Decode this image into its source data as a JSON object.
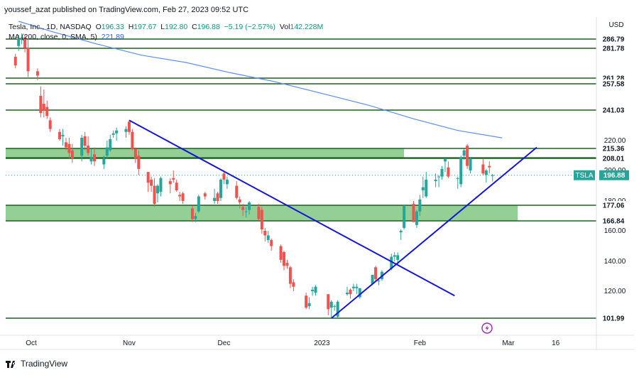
{
  "header": {
    "author": "youssef_azat",
    "published_text": "published on TradingView.com, Feb 27, 2023 09:52 UTC"
  },
  "legend": {
    "symbol": "Tesla, Inc., 1D, NASDAQ",
    "open_label": "O",
    "open": "196.33",
    "high_label": "H",
    "high": "197.67",
    "low_label": "L",
    "low": "192.80",
    "close_label": "C",
    "close": "196.88",
    "change": "−5.19 (−2.57%)",
    "vol_label": "Vol",
    "vol": "142.228M",
    "ma_label": "MA (200, close, 0, SMA, 5)",
    "ma_value": "221.89"
  },
  "brand": {
    "name": "TradingView"
  },
  "colors": {
    "up": "#26a69a",
    "down": "#ef5350",
    "ma": "#5b8ff0",
    "hline": "#1b5e20",
    "zone": "#81c784",
    "trend": "#1616d8",
    "tag": "#26a69a",
    "axis_text": "#131722"
  },
  "chart_data": {
    "type": "candlestick",
    "currency": "USD",
    "ticker_tag": "TSLA",
    "last_price": "196.88",
    "y_ticks": [
      "220.00",
      "200.00",
      "180.00",
      "160.00",
      "140.00",
      "120.00"
    ],
    "x_ticks": [
      {
        "label": "Oct",
        "x": "2022-10-01"
      },
      {
        "label": "Nov",
        "x": "2022-11-01"
      },
      {
        "label": "Dec",
        "x": "2022-12-01"
      },
      {
        "label": "2023",
        "x": "2023-01-01"
      },
      {
        "label": "Feb",
        "x": "2023-02-01"
      },
      {
        "label": "Mar",
        "x": "2023-03-01"
      },
      {
        "label": "16",
        "x": "2023-03-16"
      }
    ],
    "horizontal_levels": [
      "286.79",
      "281.78",
      "261.28",
      "257.58",
      "241.03",
      "208.01",
      "101.99"
    ],
    "zones": [
      {
        "top": "215.36",
        "bottom": 208.5,
        "x_end": "2023-01-27"
      },
      {
        "top": "177.06",
        "bottom": "166.84",
        "x_end": "2023-03-04"
      }
    ],
    "trendlines": [
      {
        "from": [
          "2022-11-01",
          234
        ],
        "to": [
          "2023-02-12",
          117
        ]
      },
      {
        "from": [
          "2023-01-04",
          101.99
        ],
        "to": [
          "2023-03-10",
          216
        ]
      }
    ],
    "ma_series": [
      [
        "2022-09-27",
        300
      ],
      [
        "2022-10-08",
        292
      ],
      [
        "2022-10-22",
        284
      ],
      [
        "2022-11-05",
        277
      ],
      [
        "2022-11-19",
        272
      ],
      [
        "2022-12-03",
        265
      ],
      [
        "2022-12-17",
        259
      ],
      [
        "2023-01-02",
        251
      ],
      [
        "2023-01-16",
        244
      ],
      [
        "2023-01-30",
        235
      ],
      [
        "2023-02-13",
        227
      ],
      [
        "2023-02-27",
        221.89
      ]
    ],
    "candles": [
      [
        "2022-09-26",
        276,
        278,
        268,
        270
      ],
      [
        "2022-09-27",
        283,
        290,
        280,
        287
      ],
      [
        "2022-09-28",
        287,
        291,
        284,
        288
      ],
      [
        "2022-09-29",
        288,
        290,
        279,
        282
      ],
      [
        "2022-09-30",
        282,
        287,
        262,
        266
      ],
      [
        "2022-10-03",
        266,
        268,
        260,
        263
      ],
      [
        "2022-10-04",
        250,
        256,
        236,
        239
      ],
      [
        "2022-10-05",
        245,
        254,
        236,
        241
      ],
      [
        "2022-10-06",
        243,
        247,
        235,
        237
      ],
      [
        "2022-10-07",
        234,
        236,
        226,
        228
      ],
      [
        "2022-10-10",
        226,
        228,
        220,
        221
      ],
      [
        "2022-10-11",
        223,
        228,
        217,
        224
      ],
      [
        "2022-10-12",
        219,
        222,
        214,
        216
      ],
      [
        "2022-10-13",
        218,
        222,
        208,
        212
      ],
      [
        "2022-10-14",
        214,
        218,
        205,
        208
      ],
      [
        "2022-10-17",
        210,
        224,
        206,
        222
      ],
      [
        "2022-10-18",
        223,
        226,
        214,
        217
      ],
      [
        "2022-10-19",
        217,
        223,
        210,
        212
      ],
      [
        "2022-10-20",
        206,
        215,
        204,
        209
      ],
      [
        "2022-10-21",
        211,
        216,
        203,
        206
      ],
      [
        "2022-10-24",
        204,
        210,
        201,
        208
      ],
      [
        "2022-10-25",
        210,
        220,
        208,
        216
      ],
      [
        "2022-10-26",
        214,
        224,
        213,
        221
      ],
      [
        "2022-10-27",
        224,
        227,
        222,
        225
      ],
      [
        "2022-10-28",
        225,
        229,
        220,
        227
      ],
      [
        "2022-10-31",
        226,
        230,
        222,
        228
      ],
      [
        "2022-11-01",
        233,
        234,
        224,
        226
      ],
      [
        "2022-11-02",
        226,
        228,
        214,
        215
      ],
      [
        "2022-11-03",
        215,
        216,
        205,
        208
      ],
      [
        "2022-11-04",
        210,
        214,
        197,
        201
      ],
      [
        "2022-11-07",
        199,
        199,
        186,
        192
      ],
      [
        "2022-11-08",
        194,
        196,
        186,
        190
      ],
      [
        "2022-11-09",
        190,
        195,
        176,
        178
      ],
      [
        "2022-11-10",
        185,
        191,
        179,
        190
      ],
      [
        "2022-11-11",
        186,
        196,
        183,
        195
      ],
      [
        "2022-11-14",
        193,
        195,
        185,
        191
      ],
      [
        "2022-11-15",
        195,
        200,
        192,
        194
      ],
      [
        "2022-11-16",
        192,
        194,
        186,
        187
      ],
      [
        "2022-11-17",
        184,
        186,
        180,
        183
      ],
      [
        "2022-11-18",
        185,
        186,
        178,
        180
      ],
      [
        "2022-11-21",
        175,
        177,
        166,
        168
      ],
      [
        "2022-11-22",
        168,
        172,
        166,
        170
      ],
      [
        "2022-11-23",
        173,
        184,
        172,
        183
      ],
      [
        "2022-11-25",
        185,
        186,
        181,
        183
      ],
      [
        "2022-11-28",
        180,
        188,
        178,
        182
      ],
      [
        "2022-11-29",
        185,
        186,
        178,
        180
      ],
      [
        "2022-11-30",
        182,
        195,
        180,
        194
      ],
      [
        "2022-12-01",
        198,
        199,
        191,
        194
      ],
      [
        "2022-12-02",
        191,
        196,
        188,
        194
      ],
      [
        "2022-12-05",
        190,
        193,
        181,
        182
      ],
      [
        "2022-12-06",
        181,
        183,
        175,
        179
      ],
      [
        "2022-12-07",
        176,
        178,
        170,
        174
      ],
      [
        "2022-12-08",
        173,
        176,
        169,
        173
      ],
      [
        "2022-12-09",
        174,
        180,
        171,
        179
      ],
      [
        "2022-12-12",
        176,
        178,
        167,
        168
      ],
      [
        "2022-12-13",
        174,
        176,
        158,
        161
      ],
      [
        "2022-12-14",
        160,
        162,
        153,
        157
      ],
      [
        "2022-12-15",
        154,
        160,
        152,
        157
      ],
      [
        "2022-12-16",
        154,
        155,
        147,
        150
      ],
      [
        "2022-12-19",
        150,
        151,
        139,
        141
      ],
      [
        "2022-12-20",
        146,
        147,
        134,
        137
      ],
      [
        "2022-12-21",
        139,
        141,
        135,
        137
      ],
      [
        "2022-12-22",
        136,
        137,
        122,
        125
      ],
      [
        "2022-12-23",
        126,
        128,
        120,
        123
      ],
      [
        "2022-12-27",
        117,
        119,
        108,
        109
      ],
      [
        "2022-12-28",
        110,
        116,
        108,
        112
      ],
      [
        "2022-12-29",
        120,
        123,
        117,
        121
      ],
      [
        "2022-12-30",
        119,
        124,
        117,
        123
      ],
      [
        "2023-01-03",
        118,
        118,
        104,
        108
      ],
      [
        "2023-01-04",
        109,
        114,
        101.99,
        113
      ],
      [
        "2023-01-05",
        110,
        111,
        107,
        110
      ],
      [
        "2023-01-06",
        103,
        114,
        101.99,
        113
      ],
      [
        "2023-01-09",
        118,
        123,
        117,
        119
      ],
      [
        "2023-01-10",
        121,
        122,
        115,
        118
      ],
      [
        "2023-01-11",
        122,
        125,
        120,
        123
      ],
      [
        "2023-01-12",
        122,
        125,
        118,
        123
      ],
      [
        "2023-01-13",
        116,
        122,
        115,
        122
      ],
      [
        "2023-01-17",
        125,
        131,
        124,
        131
      ],
      [
        "2023-01-18",
        136,
        137,
        127,
        128
      ],
      [
        "2023-01-19",
        127,
        129,
        124,
        127
      ],
      [
        "2023-01-20",
        128,
        134,
        127,
        133
      ],
      [
        "2023-01-23",
        135,
        145,
        134,
        143
      ],
      [
        "2023-01-24",
        143,
        146,
        140,
        144
      ],
      [
        "2023-01-25",
        141,
        146,
        138,
        144
      ],
      [
        "2023-01-26",
        159,
        161,
        154,
        160
      ],
      [
        "2023-01-27",
        162,
        177,
        161,
        177
      ],
      [
        "2023-01-30",
        178,
        180,
        166,
        166
      ],
      [
        "2023-01-31",
        164,
        174,
        162,
        173
      ],
      [
        "2023-02-01",
        173,
        184,
        170,
        181
      ],
      [
        "2023-02-02",
        187,
        196,
        182,
        189
      ],
      [
        "2023-02-03",
        183,
        199,
        182,
        194
      ],
      [
        "2023-02-06",
        193,
        198,
        189,
        194
      ],
      [
        "2023-02-07",
        196,
        197,
        189,
        196
      ],
      [
        "2023-02-08",
        196,
        203,
        194,
        201
      ],
      [
        "2023-02-09",
        206,
        208,
        199,
        208
      ],
      [
        "2023-02-10",
        202,
        206,
        195,
        196
      ],
      [
        "2023-02-13",
        195,
        196,
        188,
        195
      ],
      [
        "2023-02-14",
        191,
        210,
        189,
        209
      ],
      [
        "2023-02-15",
        210,
        215,
        207,
        214
      ],
      [
        "2023-02-16",
        217,
        218,
        201,
        203
      ],
      [
        "2023-02-17",
        200,
        209,
        198,
        208
      ],
      [
        "2023-02-21",
        204,
        208,
        197,
        198
      ],
      [
        "2023-02-22",
        197,
        201,
        192,
        200
      ],
      [
        "2023-02-23",
        203,
        206,
        198,
        202
      ],
      [
        "2023-02-24",
        196.33,
        197.67,
        192.8,
        196.88
      ]
    ]
  }
}
